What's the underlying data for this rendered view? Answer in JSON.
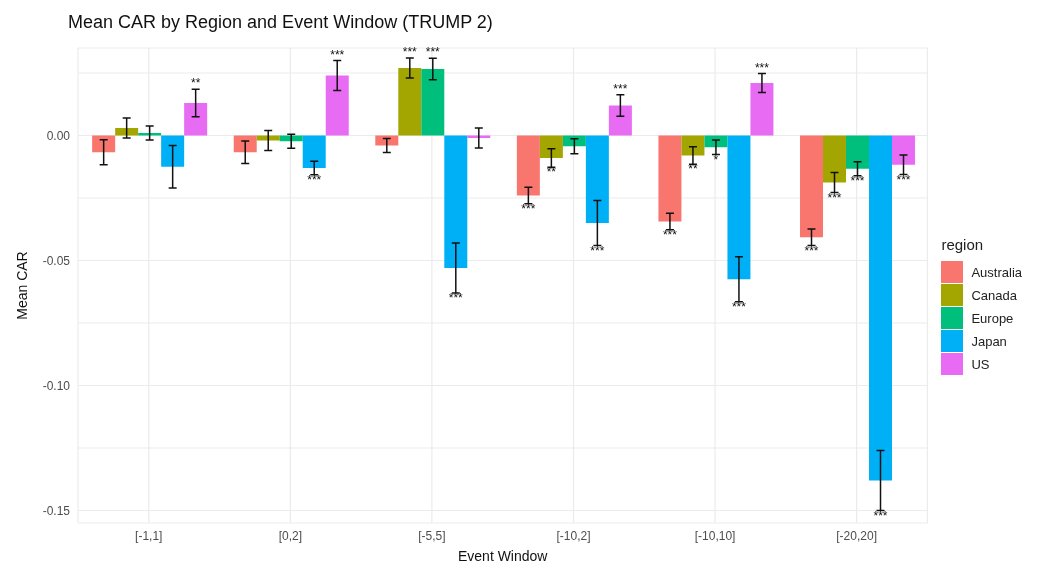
{
  "chart_data": {
    "type": "bar",
    "title": "Mean CAR by Region and Event Window (TRUMP 2)",
    "xlabel": "Event Window",
    "ylabel": "Mean CAR",
    "legend_title": "region",
    "categories": [
      "[-1,1]",
      "[0,2]",
      "[-5,5]",
      "[-10,2]",
      "[-10,10]",
      "[-20,20]"
    ],
    "series": [
      {
        "name": "Australia",
        "color": "#f8766d",
        "values": [
          -0.0067,
          -0.0067,
          -0.004,
          -0.024,
          -0.0344,
          -0.0407
        ],
        "errors": [
          0.005,
          0.0045,
          0.0028,
          0.0033,
          0.0033,
          0.0033
        ],
        "value_labels": [
          null,
          null,
          null,
          "***",
          "***",
          "***"
        ]
      },
      {
        "name": "Canada",
        "color": "#a3a500",
        "values": [
          0.003,
          -0.002,
          0.027,
          -0.009,
          -0.008,
          -0.0188
        ],
        "errors": [
          0.004,
          0.004,
          0.004,
          0.0037,
          0.0035,
          0.004
        ],
        "value_labels": [
          null,
          null,
          "***",
          "**",
          "**",
          "***"
        ]
      },
      {
        "name": "Europe",
        "color": "#00bf7d",
        "values": [
          0.001,
          -0.0023,
          0.0266,
          -0.0043,
          -0.0047,
          -0.0133
        ],
        "errors": [
          0.0028,
          0.0028,
          0.0043,
          0.003,
          0.0029,
          0.0028
        ],
        "value_labels": [
          null,
          null,
          "***",
          null,
          "*",
          "***"
        ]
      },
      {
        "name": "Japan",
        "color": "#00b0f6",
        "values": [
          -0.0125,
          -0.013,
          -0.053,
          -0.035,
          -0.0575,
          -0.138
        ],
        "errors": [
          0.0085,
          0.0027,
          0.01,
          0.009,
          0.009,
          0.012
        ],
        "value_labels": [
          null,
          "***",
          "***",
          "***",
          "***",
          "***"
        ]
      },
      {
        "name": "US",
        "color": "#e76bf3",
        "values": [
          0.013,
          0.024,
          -0.001,
          0.012,
          0.021,
          -0.0117
        ],
        "errors": [
          0.0055,
          0.006,
          0.004,
          0.0043,
          0.0038,
          0.0039
        ],
        "value_labels": [
          "**",
          "***",
          null,
          "***",
          "***",
          "***"
        ]
      }
    ],
    "ylim": [
      -0.155,
      0.035
    ],
    "yticks": [
      {
        "value": -0.15,
        "label": "-0.15"
      },
      {
        "value": -0.125,
        "label": null
      },
      {
        "value": -0.1,
        "label": "-0.10"
      },
      {
        "value": -0.075,
        "label": null
      },
      {
        "value": -0.05,
        "label": "-0.05"
      },
      {
        "value": -0.025,
        "label": null
      },
      {
        "value": 0,
        "label": "0.00"
      },
      {
        "value": 0.025,
        "label": null
      }
    ],
    "grid": true,
    "legend": "right"
  }
}
